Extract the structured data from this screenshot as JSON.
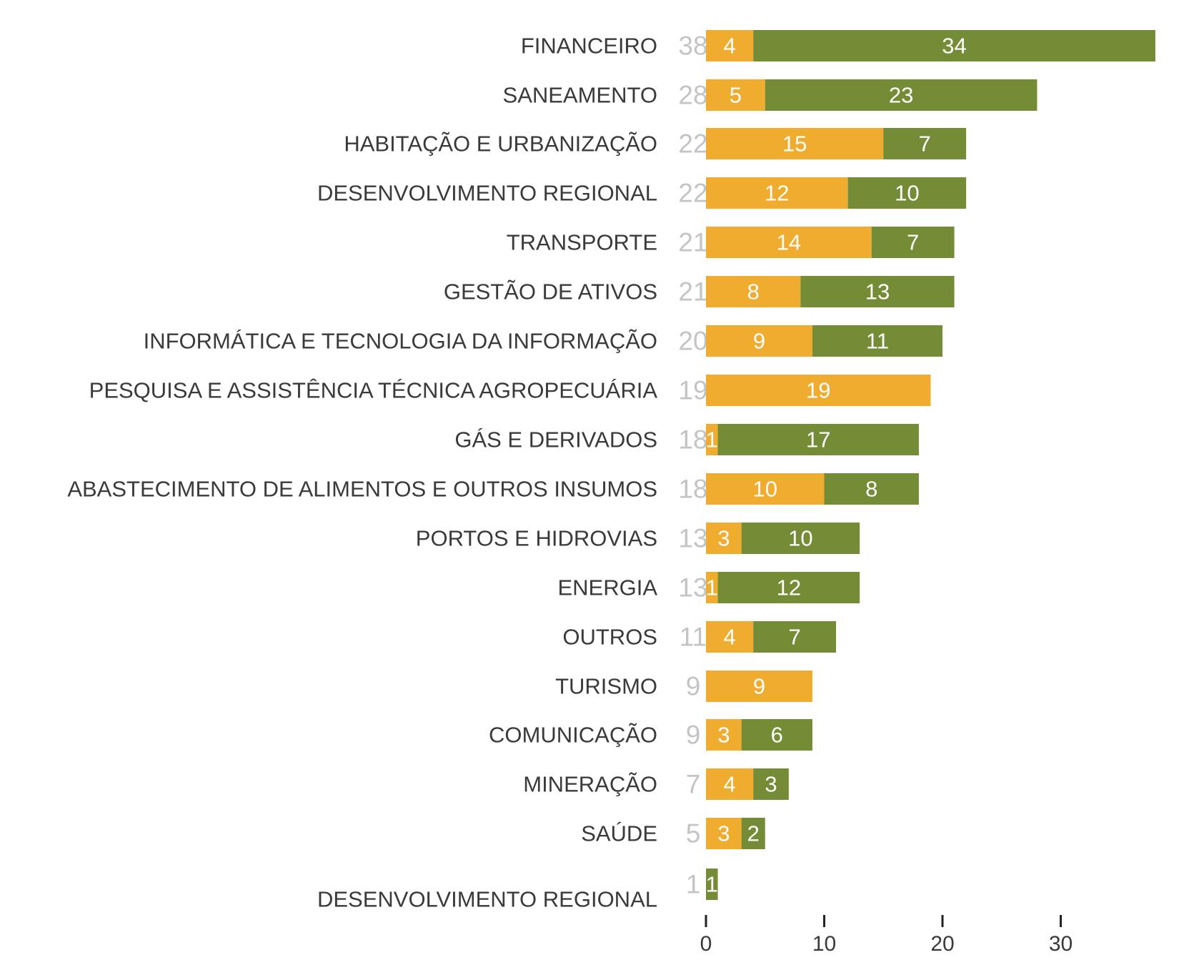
{
  "chart_data": {
    "type": "bar",
    "orientation": "horizontal",
    "stacked": true,
    "categories": [
      "FINANCEIRO",
      "SANEAMENTO",
      "HABITAÇÃO E URBANIZAÇÃO",
      "DESENVOLVIMENTO REGIONAL",
      "TRANSPORTE",
      "GESTÃO DE ATIVOS",
      "INFORMÁTICA E TECNOLOGIA DA INFORMAÇÃO",
      "PESQUISA E ASSISTÊNCIA TÉCNICA AGROPECUÁRIA",
      "GÁS E DERIVADOS",
      "ABASTECIMENTO DE ALIMENTOS E OUTROS INSUMOS",
      "PORTOS E HIDROVIAS",
      "ENERGIA",
      "OUTROS",
      "TURISMO",
      "COMUNICAÇÃO",
      "MINERAÇÃO",
      "SAÚDE",
      "DESENVOLVIMENTO REGIONAL"
    ],
    "totals": [
      38,
      28,
      22,
      22,
      21,
      21,
      20,
      19,
      18,
      18,
      13,
      13,
      11,
      9,
      9,
      7,
      5,
      1
    ],
    "series": [
      {
        "color": "#F0AC2E",
        "values": [
          4,
          5,
          15,
          12,
          14,
          8,
          9,
          19,
          1,
          10,
          3,
          1,
          4,
          9,
          3,
          4,
          3,
          0
        ]
      },
      {
        "color": "#738C35",
        "values": [
          34,
          23,
          7,
          10,
          7,
          13,
          11,
          0,
          17,
          8,
          10,
          12,
          7,
          0,
          6,
          3,
          2,
          1
        ]
      }
    ],
    "xlim": [
      0,
      38
    ],
    "x_ticks": [
      0,
      10,
      20,
      30
    ],
    "tick_labels": [
      "0",
      "10",
      "20",
      "30"
    ],
    "grid": false,
    "legend": "none",
    "xlabel": "",
    "ylabel": ""
  }
}
